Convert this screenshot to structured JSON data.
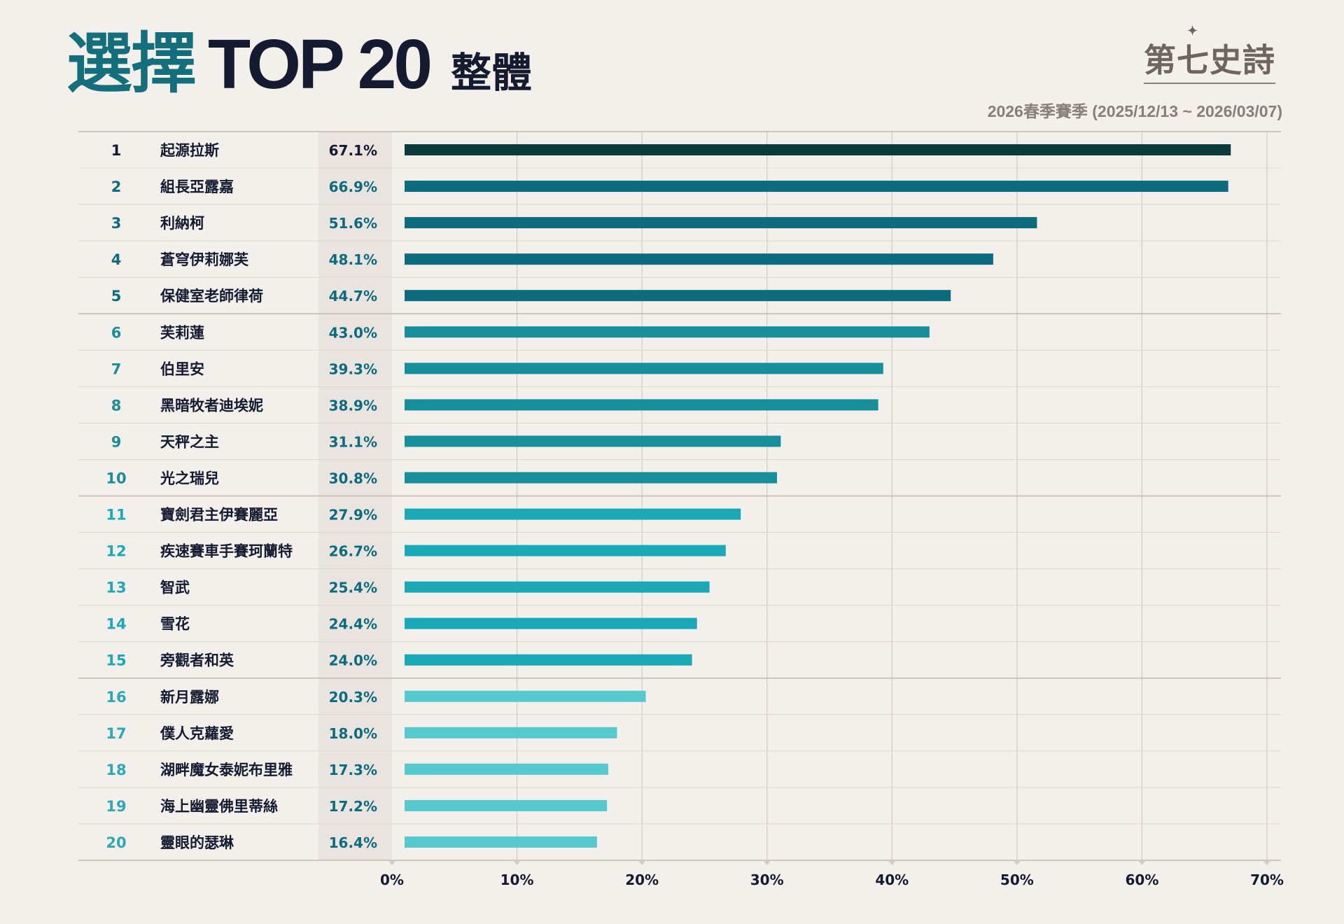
{
  "header": {
    "title_word": "選擇",
    "title_top": "TOP 20",
    "title_sub": "整體",
    "logo_text": "第七史詩",
    "season": "2026春季賽季 (2025/12/13 ~ 2026/03/07)"
  },
  "colors": {
    "background": "#f3efeb",
    "bar_rank1": "#0b3a3a",
    "bar_dark": "#0c6c7d",
    "bar_mid": "#178f9a",
    "bar_light": "#1aa9b6",
    "bar_lightest": "#55c9cd",
    "title_teal": "#136f7c",
    "title_navy": "#141a30"
  },
  "chart_data": {
    "type": "bar",
    "orientation": "horizontal",
    "categories": [
      "起源拉斯",
      "組長亞露嘉",
      "利納柯",
      "蒼穹伊莉娜芙",
      "保健室老師律荷",
      "芙莉蓮",
      "伯里安",
      "黑暗牧者迪埃妮",
      "天秤之主",
      "光之瑞兒",
      "寶劍君主伊賽麗亞",
      "疾速賽車手賽珂蘭特",
      "智武",
      "雪花",
      "旁觀者和英",
      "新月露娜",
      "僕人克蘿愛",
      "湖畔魔女泰妮布里雅",
      "海上幽靈佛里蒂絲",
      "靈眼的瑟琳"
    ],
    "ranks": [
      "1",
      "2",
      "3",
      "4",
      "5",
      "6",
      "7",
      "8",
      "9",
      "10",
      "11",
      "12",
      "13",
      "14",
      "15",
      "16",
      "17",
      "18",
      "19",
      "20"
    ],
    "values": [
      67.1,
      66.9,
      51.6,
      48.1,
      44.7,
      43.0,
      39.3,
      38.9,
      31.1,
      30.8,
      27.9,
      26.7,
      25.4,
      24.4,
      24.0,
      20.3,
      18.0,
      17.3,
      17.2,
      16.4
    ],
    "value_labels": [
      "67.1%",
      "66.9%",
      "51.6%",
      "48.1%",
      "44.7%",
      "43.0%",
      "39.3%",
      "38.9%",
      "31.1%",
      "30.8%",
      "27.9%",
      "26.7%",
      "25.4%",
      "24.4%",
      "24.0%",
      "20.3%",
      "18.0%",
      "17.3%",
      "17.2%",
      "16.4%"
    ],
    "xlim": [
      0,
      70
    ],
    "xticks": [
      0,
      10,
      20,
      30,
      40,
      50,
      60,
      70
    ],
    "xtick_labels": [
      "0%",
      "10%",
      "20%",
      "30%",
      "40%",
      "50%",
      "60%",
      "70%"
    ],
    "grid": true,
    "xlabel": "",
    "ylabel": ""
  }
}
